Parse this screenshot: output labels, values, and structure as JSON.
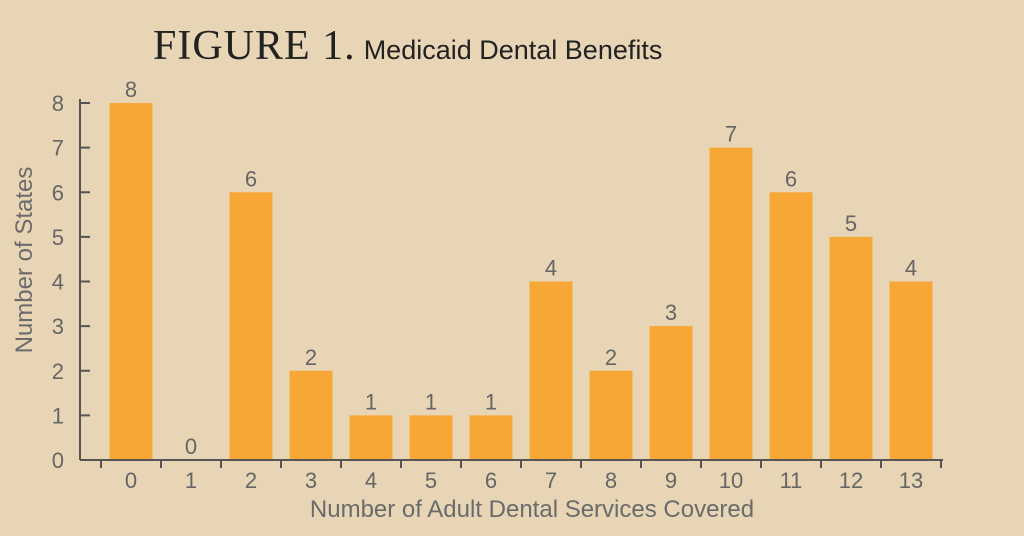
{
  "figure": {
    "label": "FIGURE 1.",
    "subtitle": "Medicaid Dental Benefits"
  },
  "colors": {
    "background": "#e8d5b5",
    "bar": "#f7a736",
    "axis": "#555555",
    "text": "#666666"
  },
  "chart_data": {
    "type": "bar",
    "title": "Medicaid Dental Benefits",
    "xlabel": "Number of Adult Dental Services Covered",
    "ylabel": "Number of States",
    "categories": [
      "0",
      "1",
      "2",
      "3",
      "4",
      "5",
      "6",
      "7",
      "8",
      "9",
      "10",
      "11",
      "12",
      "13"
    ],
    "values": [
      8,
      0,
      6,
      2,
      1,
      1,
      1,
      4,
      2,
      3,
      7,
      6,
      5,
      4
    ],
    "data_labels": [
      "8",
      "0",
      "6",
      "2",
      "1",
      "1",
      "1",
      "4",
      "2",
      "3",
      "7",
      "6",
      "5",
      "4"
    ],
    "yticks": [
      "0",
      "1",
      "2",
      "3",
      "4",
      "5",
      "6",
      "7",
      "8"
    ],
    "ylim": [
      0,
      8
    ],
    "grid": false,
    "legend": "none"
  }
}
